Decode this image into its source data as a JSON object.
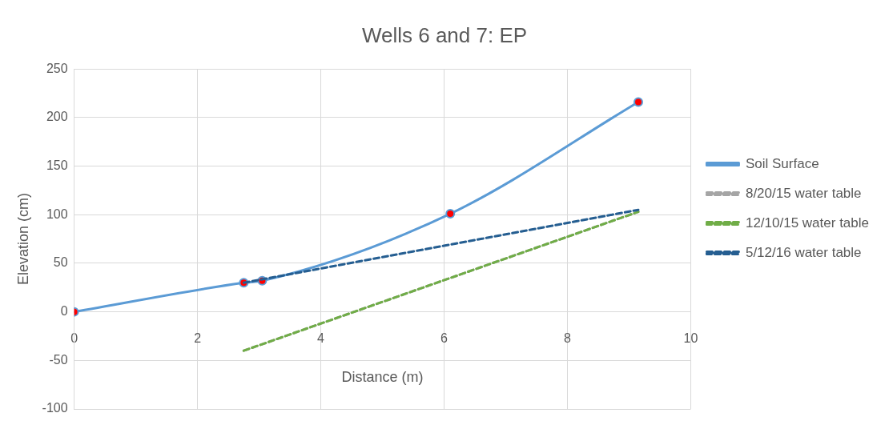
{
  "chart_data": {
    "type": "line",
    "title": "Wells 6 and 7: EP",
    "xlabel": "Distance (m)",
    "ylabel": "Elevation (cm)",
    "xlim": [
      0,
      10
    ],
    "xticks": [
      0,
      2,
      4,
      6,
      8,
      10
    ],
    "ylim": [
      -100,
      250
    ],
    "yticks": [
      -100,
      -50,
      0,
      50,
      100,
      150,
      200,
      250
    ],
    "grid": true,
    "legend": "right",
    "series": [
      {
        "name": "Soil Surface",
        "color": "#5b9bd5",
        "colors": [
          "#ff0000",
          "#ff0000",
          "#ff0000",
          "#ff0000",
          "#ff0000"
        ],
        "marker": "circle",
        "line_style": "solid",
        "x": [
          0,
          2.75,
          3.05,
          6.1,
          9.15
        ],
        "values": [
          0,
          30,
          32,
          101,
          216
        ]
      },
      {
        "name": "8/20/15 water table",
        "color": "#a5a5a5",
        "marker": "none",
        "line_style": "dashed",
        "x": [
          2.75,
          9.15
        ],
        "values": [
          -40,
          103
        ]
      },
      {
        "name": "12/10/15 water table",
        "color": "#70ad47",
        "marker": "none",
        "line_style": "dashed",
        "x": [
          2.75,
          9.15
        ],
        "values": [
          -40,
          103
        ]
      },
      {
        "name": "5/12/16 water table",
        "color": "#255e91",
        "marker": "none",
        "line_style": "dashed",
        "x": [
          2.75,
          9.15
        ],
        "values": [
          30,
          105
        ]
      }
    ]
  }
}
